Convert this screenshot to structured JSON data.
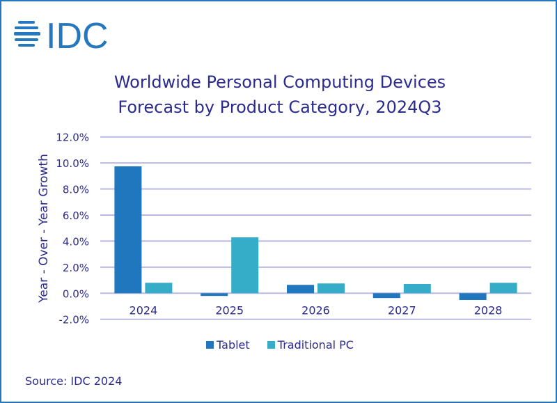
{
  "logo": {
    "text": "IDC",
    "color": "#2577be"
  },
  "colors": {
    "frame": "#2577be",
    "text": "#2b2b8f",
    "grid": "#b9b9e3"
  },
  "chart_data": {
    "type": "bar",
    "title_line1": "Worldwide Personal Computing Devices",
    "title_line2": "Forecast by Product Category, 2024Q3",
    "xlabel": "",
    "ylabel": "Year - Over - Year Growth",
    "categories": [
      "2024",
      "2025",
      "2026",
      "2027",
      "2028"
    ],
    "series": [
      {
        "name": "Tablet",
        "color": "#2077bd",
        "values": [
          9.74,
          -0.21,
          0.64,
          -0.37,
          -0.52
        ]
      },
      {
        "name": "Traditional PC",
        "color": "#36adc8",
        "values": [
          0.8,
          4.29,
          0.75,
          0.71,
          0.8
        ]
      }
    ],
    "ylim": [
      -2,
      12
    ],
    "yticks": [
      "-2.0%",
      "0.0%",
      "2.0%",
      "4.0%",
      "6.0%",
      "8.0%",
      "10.0%",
      "12.0%"
    ],
    "grid": true,
    "legend_position": "bottom"
  },
  "source": "Source: IDC 2024"
}
